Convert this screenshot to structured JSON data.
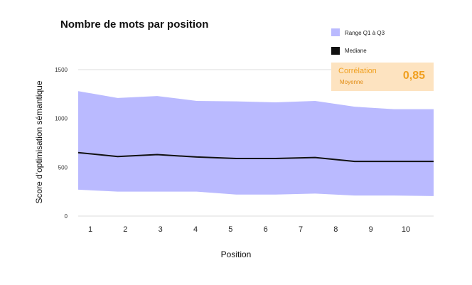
{
  "chart_data": {
    "type": "area",
    "title": "Nombre de mots par position",
    "xlabel": "Position",
    "ylabel": "Score d'optimisation sémantique",
    "x": [
      1,
      2,
      3,
      4,
      5,
      6,
      7,
      8,
      9,
      10
    ],
    "x_tick_labels": [
      "1",
      "2",
      "3",
      "4",
      "5",
      "6",
      "7",
      "8",
      "9",
      "10"
    ],
    "y_ticks": [
      0,
      500,
      1000,
      1500
    ],
    "y_tick_labels": [
      "0",
      "500",
      "1000",
      "1500"
    ],
    "ylim": [
      0,
      1500
    ],
    "grid": "horizontal",
    "legend_position": "top-right",
    "series": [
      {
        "name": "Range Q1 à Q3",
        "kind": "band",
        "color": "#babaff",
        "q3": [
          1280,
          1210,
          1230,
          1180,
          1175,
          1165,
          1180,
          1120,
          1095,
          1095
        ],
        "q1": [
          270,
          250,
          250,
          250,
          220,
          220,
          230,
          210,
          210,
          205
        ]
      },
      {
        "name": "Mediane",
        "kind": "line",
        "color": "#111111",
        "values": [
          650,
          610,
          630,
          605,
          590,
          590,
          600,
          560,
          560,
          560
        ]
      }
    ],
    "annotation": {
      "label": "Corrélation",
      "sublabel": "Moyenne",
      "value": "0,85",
      "bg_color": "#fde3c0",
      "text_color": "#f0a020"
    }
  }
}
